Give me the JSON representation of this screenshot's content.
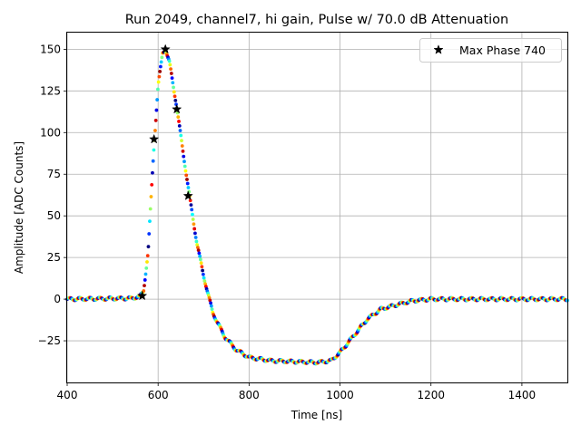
{
  "chart_data": {
    "type": "scatter",
    "title": "Run 2049, channel7, hi gain, Pulse w/ 70.0 dB Attenuation",
    "xlabel": "Time [ns]",
    "ylabel": "Amplitude [ADC Counts]",
    "xlim": [
      400,
      1500
    ],
    "ylim": [
      -50,
      160
    ],
    "xticks": [
      400,
      600,
      800,
      1000,
      1200,
      1400
    ],
    "yticks": [
      -25,
      0,
      25,
      50,
      75,
      100,
      125,
      150
    ],
    "grid": true,
    "legend_position": "top-right",
    "colormap": "jet",
    "pulse_curve": [
      {
        "x": 400,
        "y": 0
      },
      {
        "x": 540,
        "y": 0.5
      },
      {
        "x": 560,
        "y": 1.5
      },
      {
        "x": 568,
        "y": 5
      },
      {
        "x": 578,
        "y": 28
      },
      {
        "x": 590,
        "y": 88
      },
      {
        "x": 600,
        "y": 128
      },
      {
        "x": 610,
        "y": 148
      },
      {
        "x": 616,
        "y": 150
      },
      {
        "x": 625,
        "y": 142
      },
      {
        "x": 640,
        "y": 117
      },
      {
        "x": 655,
        "y": 88
      },
      {
        "x": 670,
        "y": 60
      },
      {
        "x": 685,
        "y": 34
      },
      {
        "x": 700,
        "y": 14
      },
      {
        "x": 720,
        "y": -8
      },
      {
        "x": 745,
        "y": -22
      },
      {
        "x": 770,
        "y": -30
      },
      {
        "x": 800,
        "y": -35
      },
      {
        "x": 850,
        "y": -37
      },
      {
        "x": 900,
        "y": -37.5
      },
      {
        "x": 950,
        "y": -38
      },
      {
        "x": 980,
        "y": -37
      },
      {
        "x": 1000,
        "y": -32
      },
      {
        "x": 1030,
        "y": -22
      },
      {
        "x": 1060,
        "y": -12
      },
      {
        "x": 1090,
        "y": -6
      },
      {
        "x": 1130,
        "y": -3
      },
      {
        "x": 1160,
        "y": -1
      },
      {
        "x": 1200,
        "y": 0
      },
      {
        "x": 1500,
        "y": 0
      }
    ],
    "series": [
      {
        "name": "Max Phase 740",
        "marker": "star",
        "color": "#000000",
        "points": [
          {
            "x": 565,
            "y": 2
          },
          {
            "x": 591,
            "y": 96
          },
          {
            "x": 616,
            "y": 150
          },
          {
            "x": 641,
            "y": 114
          },
          {
            "x": 666,
            "y": 62
          }
        ]
      }
    ]
  }
}
